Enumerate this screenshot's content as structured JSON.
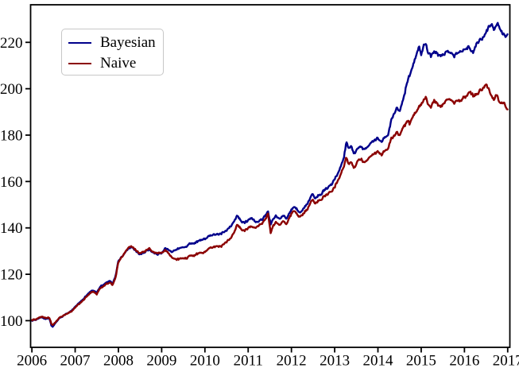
{
  "figure": {
    "background": "#ffffff",
    "axes_color": "#000000",
    "tick_label_color": "#000000"
  },
  "chart_data": {
    "type": "line",
    "title": "",
    "xlabel": "",
    "ylabel": "",
    "grid": false,
    "xlim": [
      2005.97,
      2017.05
    ],
    "ylim": [
      88.5,
      236.2
    ],
    "x_ticks": [
      2006,
      2007,
      2008,
      2009,
      2010,
      2011,
      2012,
      2013,
      2014,
      2015,
      2016,
      2017
    ],
    "y_ticks": [
      100,
      120,
      140,
      160,
      180,
      200,
      220
    ],
    "legend": {
      "position": "upper-left",
      "entries": [
        {
          "label": "Bayesian",
          "color": "#00008B"
        },
        {
          "label": "Naive",
          "color": "#8B0000"
        }
      ]
    },
    "noise": {
      "seed": 914007,
      "step": 0.015,
      "base_amplitude": 0.3,
      "level_scale": 0.006,
      "shared_fraction": 0.65,
      "ar": 0.55,
      "gain": 2.0
    },
    "series": [
      {
        "name": "Bayesian",
        "color": "#00008B",
        "points": [
          [
            2006.0,
            100.0
          ],
          [
            2006.1,
            100.4
          ],
          [
            2006.22,
            101.3
          ],
          [
            2006.32,
            100.8
          ],
          [
            2006.4,
            101.3
          ],
          [
            2006.45,
            98.0
          ],
          [
            2006.48,
            97.2
          ],
          [
            2006.55,
            99.2
          ],
          [
            2006.65,
            101.3
          ],
          [
            2006.8,
            103.0
          ],
          [
            2006.9,
            104.0
          ],
          [
            2007.0,
            106.0
          ],
          [
            2007.1,
            107.8
          ],
          [
            2007.22,
            110.0
          ],
          [
            2007.32,
            112.0
          ],
          [
            2007.42,
            112.8
          ],
          [
            2007.5,
            112.2
          ],
          [
            2007.6,
            114.8
          ],
          [
            2007.7,
            116.2
          ],
          [
            2007.78,
            117.2
          ],
          [
            2007.86,
            115.8
          ],
          [
            2007.93,
            118.5
          ],
          [
            2008.0,
            125.8
          ],
          [
            2008.1,
            128.0
          ],
          [
            2008.2,
            130.5
          ],
          [
            2008.3,
            132.0
          ],
          [
            2008.4,
            130.0
          ],
          [
            2008.5,
            128.6
          ],
          [
            2008.6,
            129.3
          ],
          [
            2008.7,
            130.6
          ],
          [
            2008.8,
            129.6
          ],
          [
            2008.9,
            128.9
          ],
          [
            2009.0,
            129.1
          ],
          [
            2009.08,
            131.2
          ],
          [
            2009.16,
            130.2
          ],
          [
            2009.24,
            129.4
          ],
          [
            2009.35,
            130.8
          ],
          [
            2009.45,
            131.2
          ],
          [
            2009.55,
            131.9
          ],
          [
            2009.65,
            132.8
          ],
          [
            2009.75,
            133.6
          ],
          [
            2009.85,
            134.3
          ],
          [
            2009.93,
            134.8
          ],
          [
            2010.0,
            135.0
          ],
          [
            2010.1,
            136.2
          ],
          [
            2010.2,
            136.8
          ],
          [
            2010.3,
            137.1
          ],
          [
            2010.4,
            137.8
          ],
          [
            2010.5,
            138.8
          ],
          [
            2010.6,
            140.6
          ],
          [
            2010.68,
            143.2
          ],
          [
            2010.75,
            145.2
          ],
          [
            2010.82,
            143.4
          ],
          [
            2010.9,
            142.2
          ],
          [
            2010.97,
            142.8
          ],
          [
            2011.05,
            144.2
          ],
          [
            2011.13,
            143.2
          ],
          [
            2011.22,
            142.4
          ],
          [
            2011.32,
            143.6
          ],
          [
            2011.4,
            145.8
          ],
          [
            2011.46,
            147.6
          ],
          [
            2011.52,
            141.6
          ],
          [
            2011.58,
            143.8
          ],
          [
            2011.64,
            145.4
          ],
          [
            2011.72,
            143.8
          ],
          [
            2011.8,
            145.2
          ],
          [
            2011.88,
            144.0
          ],
          [
            2011.95,
            145.8
          ],
          [
            2012.0,
            147.6
          ],
          [
            2012.06,
            148.9
          ],
          [
            2012.14,
            147.8
          ],
          [
            2012.2,
            147.1
          ],
          [
            2012.3,
            149.1
          ],
          [
            2012.4,
            151.6
          ],
          [
            2012.48,
            154.6
          ],
          [
            2012.56,
            153.2
          ],
          [
            2012.65,
            154.4
          ],
          [
            2012.75,
            156.2
          ],
          [
            2012.85,
            157.6
          ],
          [
            2012.93,
            159.0
          ],
          [
            2013.0,
            161.2
          ],
          [
            2013.08,
            163.5
          ],
          [
            2013.16,
            167.0
          ],
          [
            2013.22,
            171.0
          ],
          [
            2013.27,
            177.4
          ],
          [
            2013.33,
            173.6
          ],
          [
            2013.38,
            175.4
          ],
          [
            2013.44,
            172.4
          ],
          [
            2013.52,
            173.4
          ],
          [
            2013.6,
            175.6
          ],
          [
            2013.68,
            174.0
          ],
          [
            2013.76,
            174.6
          ],
          [
            2013.84,
            176.4
          ],
          [
            2013.92,
            177.2
          ],
          [
            2014.0,
            178.8
          ],
          [
            2014.08,
            177.2
          ],
          [
            2014.16,
            179.0
          ],
          [
            2014.24,
            181.0
          ],
          [
            2014.31,
            186.6
          ],
          [
            2014.38,
            188.8
          ],
          [
            2014.44,
            191.4
          ],
          [
            2014.5,
            190.4
          ],
          [
            2014.56,
            193.4
          ],
          [
            2014.62,
            197.8
          ],
          [
            2014.68,
            203.8
          ],
          [
            2014.73,
            206.0
          ],
          [
            2014.78,
            207.6
          ],
          [
            2014.84,
            211.4
          ],
          [
            2014.9,
            216.2
          ],
          [
            2014.95,
            217.6
          ],
          [
            2015.0,
            214.6
          ],
          [
            2015.06,
            218.0
          ],
          [
            2015.11,
            218.8
          ],
          [
            2015.17,
            215.4
          ],
          [
            2015.22,
            213.4
          ],
          [
            2015.3,
            216.6
          ],
          [
            2015.38,
            214.6
          ],
          [
            2015.44,
            213.6
          ],
          [
            2015.52,
            215.2
          ],
          [
            2015.6,
            215.8
          ],
          [
            2015.68,
            214.8
          ],
          [
            2015.76,
            213.6
          ],
          [
            2015.84,
            214.8
          ],
          [
            2015.92,
            216.8
          ],
          [
            2016.0,
            217.4
          ],
          [
            2016.07,
            218.2
          ],
          [
            2016.14,
            216.6
          ],
          [
            2016.2,
            215.8
          ],
          [
            2016.28,
            219.6
          ],
          [
            2016.36,
            221.0
          ],
          [
            2016.44,
            222.4
          ],
          [
            2016.52,
            224.8
          ],
          [
            2016.58,
            227.0
          ],
          [
            2016.63,
            228.2
          ],
          [
            2016.68,
            226.2
          ],
          [
            2016.73,
            226.8
          ],
          [
            2016.78,
            227.8
          ],
          [
            2016.84,
            225.6
          ],
          [
            2016.89,
            223.4
          ],
          [
            2016.94,
            222.4
          ],
          [
            2017.0,
            223.8
          ]
        ]
      },
      {
        "name": "Naive",
        "color": "#8B0000",
        "points": [
          [
            2006.0,
            100.2
          ],
          [
            2006.1,
            100.6
          ],
          [
            2006.22,
            101.6
          ],
          [
            2006.32,
            101.1
          ],
          [
            2006.4,
            101.5
          ],
          [
            2006.45,
            98.6
          ],
          [
            2006.48,
            97.9
          ],
          [
            2006.55,
            99.5
          ],
          [
            2006.65,
            101.5
          ],
          [
            2006.8,
            103.0
          ],
          [
            2006.9,
            103.8
          ],
          [
            2007.0,
            105.6
          ],
          [
            2007.1,
            107.4
          ],
          [
            2007.22,
            109.5
          ],
          [
            2007.32,
            111.4
          ],
          [
            2007.42,
            112.2
          ],
          [
            2007.5,
            111.6
          ],
          [
            2007.6,
            114.2
          ],
          [
            2007.7,
            115.6
          ],
          [
            2007.78,
            116.6
          ],
          [
            2007.86,
            115.2
          ],
          [
            2007.93,
            118.0
          ],
          [
            2008.0,
            125.4
          ],
          [
            2008.1,
            127.8
          ],
          [
            2008.2,
            130.6
          ],
          [
            2008.3,
            132.3
          ],
          [
            2008.4,
            130.3
          ],
          [
            2008.5,
            129.0
          ],
          [
            2008.6,
            129.8
          ],
          [
            2008.7,
            131.0
          ],
          [
            2008.8,
            130.0
          ],
          [
            2008.9,
            129.2
          ],
          [
            2009.0,
            129.4
          ],
          [
            2009.08,
            130.3
          ],
          [
            2009.16,
            128.6
          ],
          [
            2009.24,
            126.9
          ],
          [
            2009.35,
            126.4
          ],
          [
            2009.45,
            126.6
          ],
          [
            2009.55,
            127.0
          ],
          [
            2009.65,
            127.6
          ],
          [
            2009.75,
            128.2
          ],
          [
            2009.85,
            128.8
          ],
          [
            2009.93,
            129.2
          ],
          [
            2010.0,
            129.6
          ],
          [
            2010.1,
            130.8
          ],
          [
            2010.2,
            131.5
          ],
          [
            2010.3,
            131.9
          ],
          [
            2010.4,
            132.6
          ],
          [
            2010.5,
            133.7
          ],
          [
            2010.6,
            135.6
          ],
          [
            2010.68,
            138.8
          ],
          [
            2010.75,
            141.4
          ],
          [
            2010.82,
            140.0
          ],
          [
            2010.9,
            138.8
          ],
          [
            2010.97,
            139.4
          ],
          [
            2011.05,
            140.6
          ],
          [
            2011.13,
            139.9
          ],
          [
            2011.22,
            140.6
          ],
          [
            2011.32,
            141.9
          ],
          [
            2011.4,
            144.2
          ],
          [
            2011.46,
            146.4
          ],
          [
            2011.52,
            137.9
          ],
          [
            2011.58,
            140.8
          ],
          [
            2011.64,
            142.6
          ],
          [
            2011.72,
            141.0
          ],
          [
            2011.8,
            142.8
          ],
          [
            2011.88,
            141.6
          ],
          [
            2011.95,
            143.8
          ],
          [
            2012.0,
            145.9
          ],
          [
            2012.06,
            147.1
          ],
          [
            2012.14,
            145.9
          ],
          [
            2012.2,
            145.0
          ],
          [
            2012.3,
            146.8
          ],
          [
            2012.4,
            149.2
          ],
          [
            2012.48,
            152.2
          ],
          [
            2012.56,
            150.9
          ],
          [
            2012.65,
            152.0
          ],
          [
            2012.75,
            153.6
          ],
          [
            2012.85,
            154.9
          ],
          [
            2012.93,
            156.2
          ],
          [
            2013.0,
            157.9
          ],
          [
            2013.08,
            160.2
          ],
          [
            2013.16,
            163.4
          ],
          [
            2013.22,
            167.0
          ],
          [
            2013.27,
            171.0
          ],
          [
            2013.33,
            166.8
          ],
          [
            2013.38,
            168.6
          ],
          [
            2013.44,
            166.0
          ],
          [
            2013.52,
            168.0
          ],
          [
            2013.6,
            170.0
          ],
          [
            2013.68,
            168.4
          ],
          [
            2013.76,
            169.2
          ],
          [
            2013.84,
            170.8
          ],
          [
            2013.92,
            171.6
          ],
          [
            2014.0,
            172.9
          ],
          [
            2014.08,
            171.6
          ],
          [
            2014.16,
            173.0
          ],
          [
            2014.24,
            174.8
          ],
          [
            2014.31,
            178.4
          ],
          [
            2014.38,
            179.6
          ],
          [
            2014.44,
            180.6
          ],
          [
            2014.5,
            180.2
          ],
          [
            2014.56,
            182.0
          ],
          [
            2014.62,
            184.0
          ],
          [
            2014.68,
            186.8
          ],
          [
            2014.73,
            184.8
          ],
          [
            2014.78,
            186.4
          ],
          [
            2014.84,
            189.2
          ],
          [
            2014.9,
            191.0
          ],
          [
            2014.95,
            191.8
          ],
          [
            2015.0,
            193.0
          ],
          [
            2015.06,
            194.6
          ],
          [
            2015.11,
            195.8
          ],
          [
            2015.17,
            193.0
          ],
          [
            2015.22,
            191.6
          ],
          [
            2015.3,
            195.4
          ],
          [
            2015.38,
            193.2
          ],
          [
            2015.44,
            191.8
          ],
          [
            2015.52,
            193.6
          ],
          [
            2015.6,
            195.2
          ],
          [
            2015.68,
            194.6
          ],
          [
            2015.76,
            193.8
          ],
          [
            2015.84,
            194.6
          ],
          [
            2015.92,
            195.6
          ],
          [
            2016.0,
            196.4
          ],
          [
            2016.07,
            197.6
          ],
          [
            2016.14,
            198.3
          ],
          [
            2016.2,
            197.0
          ],
          [
            2016.28,
            197.4
          ],
          [
            2016.36,
            199.2
          ],
          [
            2016.44,
            200.6
          ],
          [
            2016.5,
            201.5
          ],
          [
            2016.56,
            199.8
          ],
          [
            2016.62,
            197.4
          ],
          [
            2016.68,
            195.6
          ],
          [
            2016.74,
            197.0
          ],
          [
            2016.8,
            195.2
          ],
          [
            2016.86,
            194.2
          ],
          [
            2016.92,
            193.6
          ],
          [
            2017.0,
            190.6
          ]
        ]
      }
    ]
  }
}
